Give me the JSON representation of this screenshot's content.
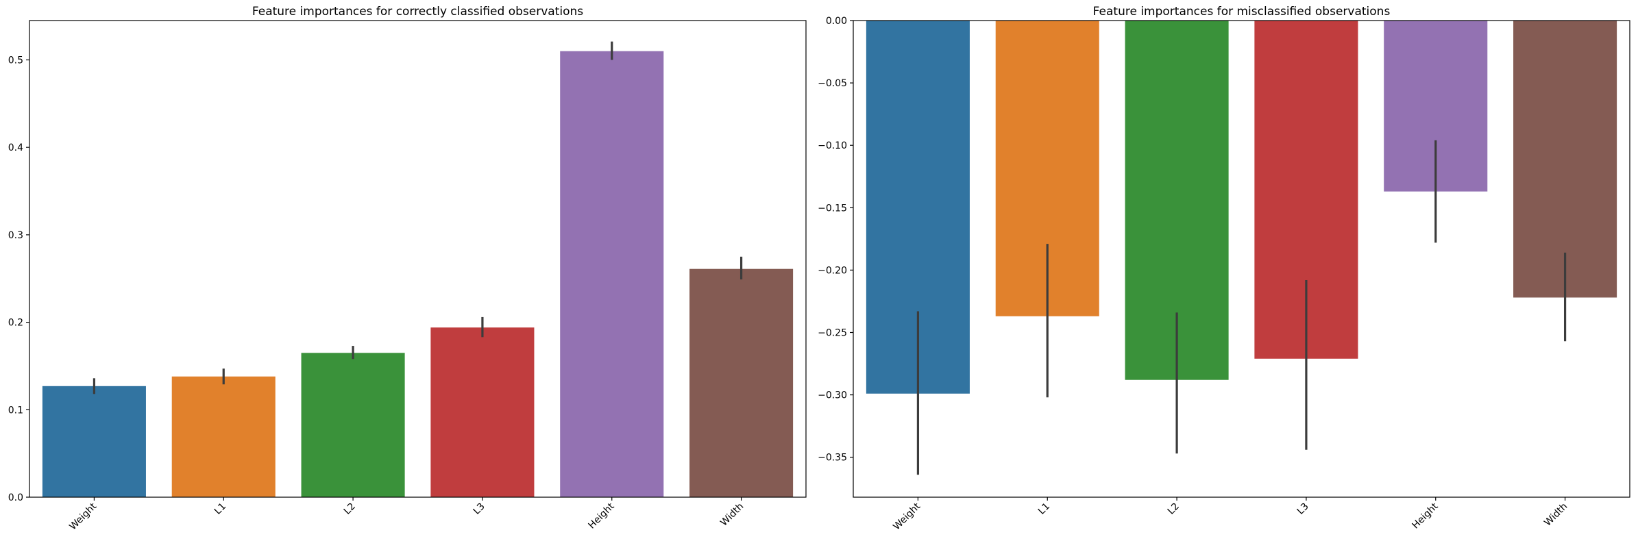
{
  "chart_data": [
    {
      "type": "bar",
      "title": "Feature importances for correctly classified observations",
      "xlabel": "",
      "ylabel": "",
      "categories": [
        "Weight",
        "L1",
        "L2",
        "L3",
        "Height",
        "Width"
      ],
      "values": [
        0.127,
        0.138,
        0.165,
        0.194,
        0.51,
        0.261
      ],
      "error_low": [
        0.118,
        0.129,
        0.158,
        0.183,
        0.5,
        0.249
      ],
      "error_high": [
        0.136,
        0.147,
        0.173,
        0.206,
        0.521,
        0.275
      ],
      "colors": [
        "#3274a1",
        "#e1812c",
        "#3a923a",
        "#c03d3e",
        "#9372b2",
        "#845b53"
      ],
      "ylim": [
        0,
        0.545
      ],
      "yticks": [
        0.0,
        0.1,
        0.2,
        0.3,
        0.4,
        0.5
      ],
      "ytick_labels": [
        "0.0",
        "0.1",
        "0.2",
        "0.3",
        "0.4",
        "0.5"
      ],
      "grid": false,
      "legend": "none"
    },
    {
      "type": "bar",
      "title": "Feature importances for misclassified observations",
      "xlabel": "",
      "ylabel": "",
      "categories": [
        "Weight",
        "L1",
        "L2",
        "L3",
        "Height",
        "Width"
      ],
      "values": [
        -0.299,
        -0.237,
        -0.288,
        -0.271,
        -0.137,
        -0.222
      ],
      "error_low": [
        -0.364,
        -0.302,
        -0.347,
        -0.344,
        -0.178,
        -0.257
      ],
      "error_high": [
        -0.233,
        -0.179,
        -0.234,
        -0.208,
        -0.096,
        -0.186
      ],
      "colors": [
        "#3274a1",
        "#e1812c",
        "#3a923a",
        "#c03d3e",
        "#9372b2",
        "#845b53"
      ],
      "ylim": [
        -0.382,
        0.0
      ],
      "yticks": [
        0.0,
        -0.05,
        -0.1,
        -0.15,
        -0.2,
        -0.25,
        -0.3,
        -0.35
      ],
      "ytick_labels": [
        "0.00",
        "−0.05",
        "−0.10",
        "−0.15",
        "−0.20",
        "−0.25",
        "−0.30",
        "−0.35"
      ],
      "grid": false,
      "legend": "none"
    }
  ]
}
